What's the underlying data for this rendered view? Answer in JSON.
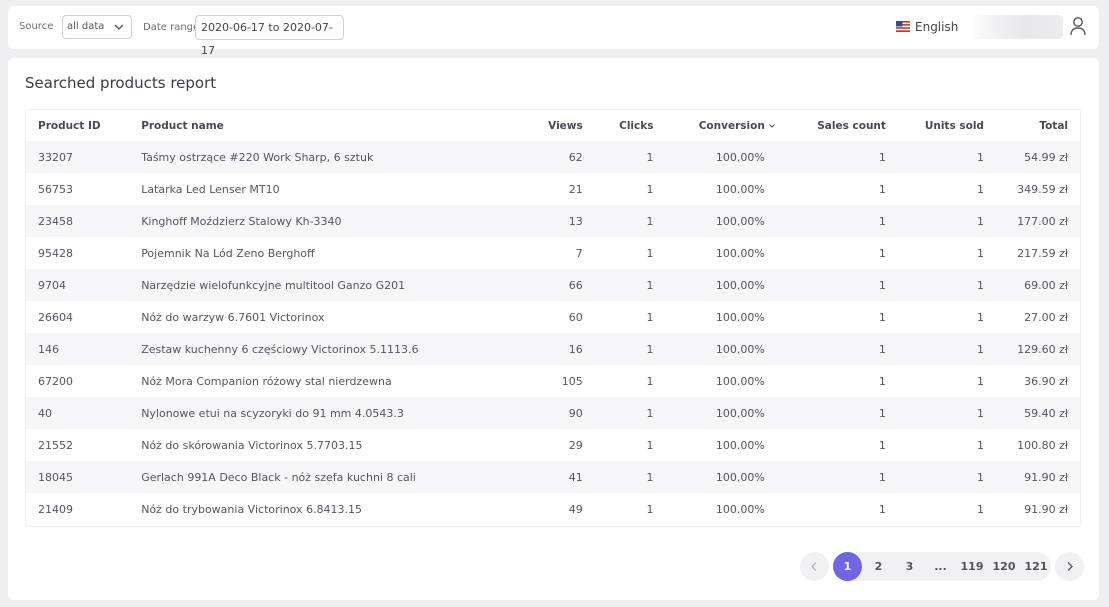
{
  "filters": {
    "source_label": "Source",
    "source_value": "all data",
    "date_range_label": "Date range",
    "date_range_value": "2020-06-17 to 2020-07-17"
  },
  "header": {
    "language": "English"
  },
  "report": {
    "title": "Searched products report",
    "columns": {
      "product_id": "Product ID",
      "product_name": "Product name",
      "views": "Views",
      "clicks": "Clicks",
      "conversion": "Conversion",
      "sales_count": "Sales count",
      "units_sold": "Units sold",
      "total": "Total"
    },
    "rows": [
      {
        "id": "33207",
        "name": "Taśmy ostrzące #220 Work Sharp, 6 sztuk",
        "views": "62",
        "clicks": "1",
        "conversion": "100.00%",
        "sales": "1",
        "units": "1",
        "total": "54.99 zł"
      },
      {
        "id": "56753",
        "name": "Latarka Led Lenser MT10",
        "views": "21",
        "clicks": "1",
        "conversion": "100.00%",
        "sales": "1",
        "units": "1",
        "total": "349.59 zł"
      },
      {
        "id": "23458",
        "name": "Kinghoff Moździerz Stalowy Kh-3340",
        "views": "13",
        "clicks": "1",
        "conversion": "100.00%",
        "sales": "1",
        "units": "1",
        "total": "177.00 zł"
      },
      {
        "id": "95428",
        "name": "Pojemnik Na Lód Zeno Berghoff",
        "views": "7",
        "clicks": "1",
        "conversion": "100.00%",
        "sales": "1",
        "units": "1",
        "total": "217.59 zł"
      },
      {
        "id": "9704",
        "name": "Narzędzie wielofunkcyjne multitool Ganzo G201",
        "views": "66",
        "clicks": "1",
        "conversion": "100.00%",
        "sales": "1",
        "units": "1",
        "total": "69.00 zł"
      },
      {
        "id": "26604",
        "name": "Nóż do warzyw 6.7601 Victorinox",
        "views": "60",
        "clicks": "1",
        "conversion": "100.00%",
        "sales": "1",
        "units": "1",
        "total": "27.00 zł"
      },
      {
        "id": "146",
        "name": "Zestaw kuchenny 6 częściowy Victorinox 5.1113.6",
        "views": "16",
        "clicks": "1",
        "conversion": "100.00%",
        "sales": "1",
        "units": "1",
        "total": "129.60 zł"
      },
      {
        "id": "67200",
        "name": "Nóż Mora Companion różowy stal nierdzewna",
        "views": "105",
        "clicks": "1",
        "conversion": "100.00%",
        "sales": "1",
        "units": "1",
        "total": "36.90 zł"
      },
      {
        "id": "40",
        "name": "Nylonowe etui na scyzoryki do 91 mm 4.0543.3",
        "views": "90",
        "clicks": "1",
        "conversion": "100.00%",
        "sales": "1",
        "units": "1",
        "total": "59.40 zł"
      },
      {
        "id": "21552",
        "name": "Nóż do skórowania Victorinox 5.7703.15",
        "views": "29",
        "clicks": "1",
        "conversion": "100.00%",
        "sales": "1",
        "units": "1",
        "total": "100.80 zł"
      },
      {
        "id": "18045",
        "name": "Gerlach 991A Deco Black - nóż szefa kuchni 8 cali",
        "views": "41",
        "clicks": "1",
        "conversion": "100.00%",
        "sales": "1",
        "units": "1",
        "total": "91.90 zł"
      },
      {
        "id": "21409",
        "name": "Nóż do trybowania Victorinox 6.8413.15",
        "views": "49",
        "clicks": "1",
        "conversion": "100.00%",
        "sales": "1",
        "units": "1",
        "total": "91.90 zł"
      }
    ]
  },
  "pagination": {
    "pages": [
      "1",
      "2",
      "3",
      "...",
      "119",
      "120",
      "121"
    ],
    "current": "1",
    "accent_color": "#7165e3"
  },
  "icons": {
    "source_dropdown": "chevron-down-icon",
    "language_flag": "us-flag-icon",
    "user": "user-icon",
    "sort": "sort-down-icon",
    "prev": "chevron-left-icon",
    "next": "chevron-right-icon"
  }
}
